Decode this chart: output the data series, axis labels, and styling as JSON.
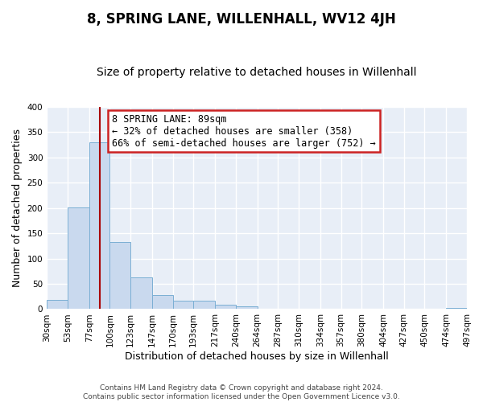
{
  "title": "8, SPRING LANE, WILLENHALL, WV12 4JH",
  "subtitle": "Size of property relative to detached houses in Willenhall",
  "xlabel": "Distribution of detached houses by size in Willenhall",
  "ylabel": "Number of detached properties",
  "bin_edges": [
    30,
    53,
    77,
    100,
    123,
    147,
    170,
    193,
    217,
    240,
    264,
    287,
    310,
    334,
    357,
    380,
    404,
    427,
    450,
    474,
    497
  ],
  "bar_heights": [
    19,
    201,
    330,
    133,
    62,
    27,
    16,
    16,
    9,
    5,
    1,
    1,
    0,
    0,
    0,
    0,
    0,
    0,
    0,
    3
  ],
  "bar_color": "#c9d9ee",
  "bar_edge_color": "#7bafd4",
  "vertical_line_x": 89,
  "vertical_line_color": "#aa0000",
  "annotation_line1": "8 SPRING LANE: 89sqm",
  "annotation_line2": "← 32% of detached houses are smaller (358)",
  "annotation_line3": "66% of semi-detached houses are larger (752) →",
  "annotation_box_edge_color": "#cc2222",
  "annotation_box_fill": "white",
  "ylim": [
    0,
    400
  ],
  "yticks": [
    0,
    50,
    100,
    150,
    200,
    250,
    300,
    350,
    400
  ],
  "tick_labels": [
    "30sqm",
    "53sqm",
    "77sqm",
    "100sqm",
    "123sqm",
    "147sqm",
    "170sqm",
    "193sqm",
    "217sqm",
    "240sqm",
    "264sqm",
    "287sqm",
    "310sqm",
    "334sqm",
    "357sqm",
    "380sqm",
    "404sqm",
    "427sqm",
    "450sqm",
    "474sqm",
    "497sqm"
  ],
  "footer_line1": "Contains HM Land Registry data © Crown copyright and database right 2024.",
  "footer_line2": "Contains public sector information licensed under the Open Government Licence v3.0.",
  "background_color": "#ffffff",
  "plot_bg_color": "#e8eef7",
  "grid_color": "#ffffff",
  "title_fontsize": 12,
  "subtitle_fontsize": 10,
  "axis_label_fontsize": 9,
  "tick_fontsize": 7.5,
  "annotation_fontsize": 8.5,
  "footer_fontsize": 6.5
}
